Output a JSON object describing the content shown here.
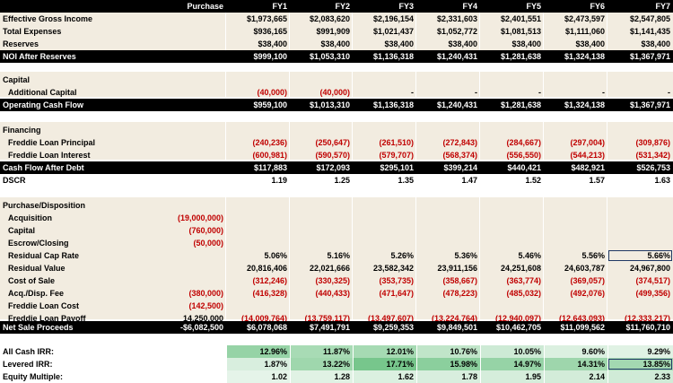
{
  "columns": [
    "Purchase",
    "FY1",
    "FY2",
    "FY3",
    "FY4",
    "FY5",
    "FY6",
    "FY7"
  ],
  "colors": {
    "red": "#c00000",
    "beige": "#f2ece0",
    "black": "#000000",
    "green_dark": "#63be7b",
    "green_light": "#e8f5eb",
    "outline": "#1f3864"
  },
  "operating": [
    {
      "label": "Effective Gross Income",
      "values": [
        "",
        "$1,973,665",
        "$2,083,620",
        "$2,196,154",
        "$2,331,603",
        "$2,401,551",
        "$2,473,597",
        "$2,547,805"
      ]
    },
    {
      "label": "Total Expenses",
      "values": [
        "",
        "$936,165",
        "$991,909",
        "$1,021,437",
        "$1,052,772",
        "$1,081,513",
        "$1,111,060",
        "$1,141,435"
      ]
    },
    {
      "label": "Reserves",
      "values": [
        "",
        "$38,400",
        "$38,400",
        "$38,400",
        "$38,400",
        "$38,400",
        "$38,400",
        "$38,400"
      ]
    }
  ],
  "noi": {
    "label": "NOI After Reserves",
    "values": [
      "",
      "$999,100",
      "$1,053,310",
      "$1,136,318",
      "$1,240,431",
      "$1,281,638",
      "$1,324,138",
      "$1,367,971"
    ]
  },
  "capital": {
    "heading": "Capital",
    "rows": [
      {
        "label": "Additional Capital",
        "values": [
          "",
          "(40,000)",
          "(40,000)",
          "-",
          "-",
          "-",
          "-",
          "-"
        ]
      }
    ]
  },
  "ocf": {
    "label": "Operating Cash Flow",
    "values": [
      "",
      "$959,100",
      "$1,013,310",
      "$1,136,318",
      "$1,240,431",
      "$1,281,638",
      "$1,324,138",
      "$1,367,971"
    ]
  },
  "financing": {
    "heading": "Financing",
    "rows": [
      {
        "label": "Freddie Loan Principal",
        "values": [
          "",
          "(240,236)",
          "(250,647)",
          "(261,510)",
          "(272,843)",
          "(284,667)",
          "(297,004)",
          "(309,876)"
        ]
      },
      {
        "label": "Freddie Loan Interest",
        "values": [
          "",
          "(600,981)",
          "(590,570)",
          "(579,707)",
          "(568,374)",
          "(556,550)",
          "(544,213)",
          "(531,342)"
        ]
      }
    ]
  },
  "cfad": {
    "label": "Cash Flow After Debt",
    "values": [
      "",
      "$117,883",
      "$172,093",
      "$295,101",
      "$399,214",
      "$440,421",
      "$482,921",
      "$526,753"
    ]
  },
  "dscr": {
    "label": "DSCR",
    "values": [
      "",
      "1.19",
      "1.25",
      "1.35",
      "1.47",
      "1.52",
      "1.57",
      "1.63"
    ]
  },
  "disposition": {
    "heading": "Purchase/Disposition",
    "rows": [
      {
        "label": "Acquisition",
        "values": [
          "(19,000,000)",
          "",
          "",
          "",
          "",
          "",
          "",
          ""
        ]
      },
      {
        "label": "Capital",
        "values": [
          "(760,000)",
          "",
          "",
          "",
          "",
          "",
          "",
          ""
        ]
      },
      {
        "label": "Escrow/Closing",
        "values": [
          "(50,000)",
          "",
          "",
          "",
          "",
          "",
          "",
          ""
        ]
      },
      {
        "label": "Residual Cap Rate",
        "values": [
          "",
          "5.06%",
          "5.16%",
          "5.26%",
          "5.36%",
          "5.46%",
          "5.56%",
          "5.66%"
        ]
      },
      {
        "label": "Residual Value",
        "values": [
          "",
          "20,816,406",
          "22,021,666",
          "23,582,342",
          "23,911,156",
          "24,251,608",
          "24,603,787",
          "24,967,800"
        ]
      },
      {
        "label": "Cost of Sale",
        "values": [
          "",
          "(312,246)",
          "(330,325)",
          "(353,735)",
          "(358,667)",
          "(363,774)",
          "(369,057)",
          "(374,517)"
        ]
      },
      {
        "label": "Acq./Disp. Fee",
        "values": [
          "(380,000)",
          "(416,328)",
          "(440,433)",
          "(471,647)",
          "(478,223)",
          "(485,032)",
          "(492,076)",
          "(499,356)"
        ]
      },
      {
        "label": "Freddie Loan Cost",
        "values": [
          "(142,500)",
          "",
          "",
          "",
          "",
          "",
          "",
          ""
        ]
      },
      {
        "label": "Freddie Loan Payoff",
        "values": [
          "14,250,000",
          "(14,009,764)",
          "(13,759,117)",
          "(13,497,607)",
          "(13,224,764)",
          "(12,940,097)",
          "(12,643,093)",
          "(12,333,217)"
        ]
      }
    ]
  },
  "nsp": {
    "label": "Net Sale Proceeds",
    "values": [
      "-$6,082,500",
      "$6,078,068",
      "$7,491,791",
      "$9,259,353",
      "$9,849,501",
      "$10,462,705",
      "$11,099,562",
      "$11,760,710"
    ]
  },
  "returns": [
    {
      "label": "All Cash IRR:",
      "values": [
        "",
        "12.96%",
        "11.87%",
        "12.01%",
        "10.76%",
        "10.05%",
        "9.60%",
        "9.29%"
      ],
      "shade": [
        0,
        0.62,
        0.48,
        0.5,
        0.3,
        0.2,
        0.1,
        0.06
      ]
    },
    {
      "label": "Levered IRR:",
      "values": [
        "",
        "1.87%",
        "13.22%",
        "17.71%",
        "15.98%",
        "14.97%",
        "14.31%",
        "13.85%"
      ],
      "shade": [
        0,
        0.12,
        0.55,
        0.85,
        0.7,
        0.62,
        0.56,
        0.52
      ]
    },
    {
      "label": "Equity Multiple:",
      "values": [
        "",
        "1.02",
        "1.28",
        "1.62",
        "1.78",
        "1.95",
        "2.14",
        "2.33"
      ],
      "shade": [
        0,
        0.02,
        0.06,
        0.1,
        0.12,
        0.14,
        0.16,
        0.18
      ]
    }
  ]
}
